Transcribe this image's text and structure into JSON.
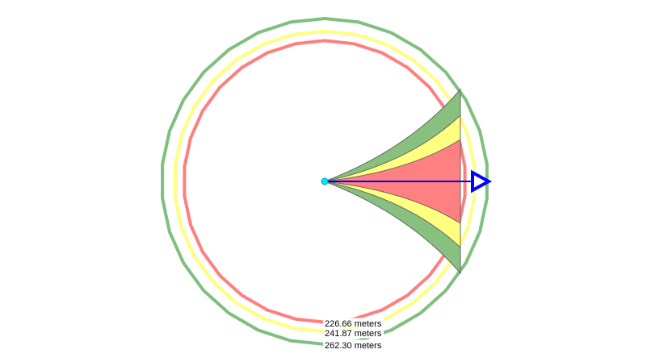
{
  "rings": [
    {
      "id": "red",
      "label": "226.66 meters",
      "distance_m": 226.66,
      "color": "#ff7f7f"
    },
    {
      "id": "yellow",
      "label": "241.87 meters",
      "distance_m": 241.87,
      "color": "#ffff7f"
    },
    {
      "id": "green",
      "label": "262.30 meters",
      "distance_m": 262.3,
      "color": "#7fbf7f"
    }
  ],
  "wedge_colors": {
    "green": "#88c17f",
    "yellow": "#ffff80",
    "red": "#ff8080"
  },
  "direction_arrow_color": "#0000ff",
  "origin_color": "#00e5ff"
}
